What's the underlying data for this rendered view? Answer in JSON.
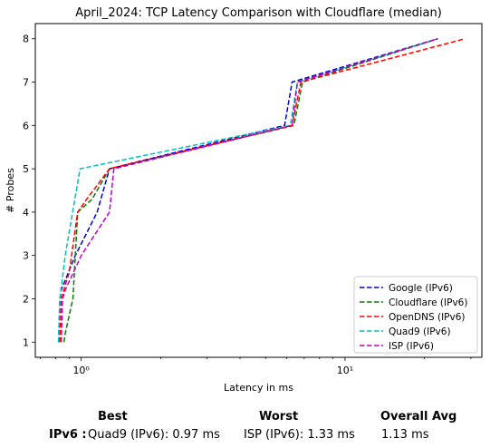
{
  "chart_data": {
    "type": "line",
    "title": "April_2024: TCP Latency Comparison with Cloudflare (median)",
    "xlabel": "Latency in ms",
    "ylabel": "# Probes",
    "x_scale": "log",
    "xlim": [
      0.67,
      33
    ],
    "ylim": [
      0.65,
      8.35
    ],
    "x_ticks": [
      {
        "value": 1,
        "label": "10⁰"
      },
      {
        "value": 10,
        "label": "10¹"
      }
    ],
    "y_ticks": [
      1,
      2,
      3,
      4,
      5,
      6,
      7,
      8
    ],
    "legend_position": "lower-right",
    "series": [
      {
        "name": "Google (IPv6)",
        "color": "#0000cc",
        "x": [
          0.82,
          0.83,
          0.84,
          0.95,
          1.15,
          1.28,
          5.9,
          6.3,
          22.5
        ],
        "y": [
          1,
          2,
          2.2,
          3,
          4,
          5,
          6,
          7,
          8
        ]
      },
      {
        "name": "Cloudflare (IPv6)",
        "color": "#008000",
        "x": [
          0.86,
          0.87,
          0.93,
          0.97,
          1.1,
          1.28,
          6.4,
          6.9,
          22.5
        ],
        "y": [
          1,
          1.2,
          2,
          4,
          4.3,
          5,
          6,
          7,
          8
        ]
      },
      {
        "name": "OpenDNS (IPv6)",
        "color": "#ff0000",
        "x": [
          0.83,
          0.84,
          0.9,
          0.97,
          1.05,
          1.28,
          6.3,
          6.8,
          28.5
        ],
        "y": [
          1,
          2,
          2.6,
          4,
          4.3,
          5,
          6,
          7,
          8
        ]
      },
      {
        "name": "Quad9 (IPv6)",
        "color": "#00bfbf",
        "x": [
          0.82,
          0.83,
          0.87,
          0.99,
          6.2,
          6.6,
          22.5
        ],
        "y": [
          1,
          2,
          3,
          5,
          6,
          7,
          8
        ]
      },
      {
        "name": "ISP (IPv6)",
        "color": "#bf00bf",
        "x": [
          0.84,
          0.85,
          0.87,
          1.0,
          1.28,
          1.33,
          6.3,
          6.6,
          22.5
        ],
        "y": [
          1,
          2,
          2.2,
          3,
          4,
          5,
          6,
          7,
          8
        ]
      }
    ]
  },
  "stats": {
    "best_header": "Best",
    "worst_header": "Worst",
    "avg_header": "Overall Avg",
    "row_label": "IPv6 :",
    "best_value": "Quad9 (IPv6): 0.97 ms",
    "worst_value": "ISP (IPv6): 1.33 ms",
    "avg_value": "1.13 ms"
  }
}
